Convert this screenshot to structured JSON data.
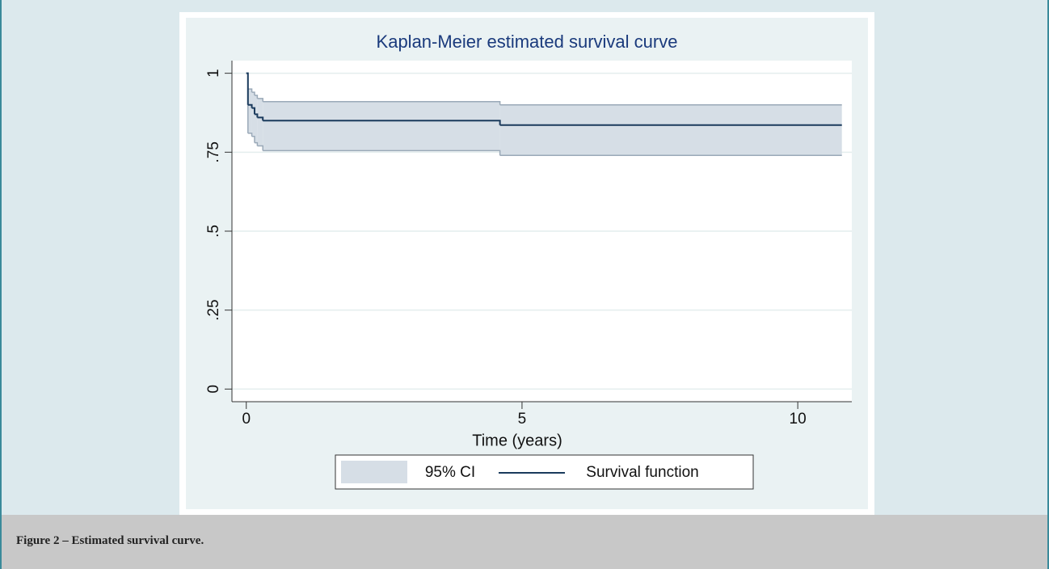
{
  "chart_data": {
    "type": "km",
    "title": "Kaplan-Meier estimated survival curve",
    "x_label": "Time (years)",
    "x": [
      0,
      0.03,
      0.1,
      0.15,
      0.2,
      0.3,
      4.6,
      10.8
    ],
    "series": [
      {
        "name": "Survival function",
        "color": "#1a3a5c",
        "values": [
          1,
          0.9,
          0.89,
          0.87,
          0.86,
          0.85,
          0.836,
          0.836
        ]
      }
    ],
    "ci": {
      "name": "95% CI",
      "color": "#d6dee6",
      "edge_color": "#9aa9b8",
      "lower": [
        1,
        0.81,
        0.8,
        0.78,
        0.77,
        0.755,
        0.74,
        0.74
      ],
      "upper": [
        1,
        0.95,
        0.94,
        0.93,
        0.92,
        0.91,
        0.9,
        0.9
      ]
    },
    "xlim": [
      -0.26,
      10.98
    ],
    "xticks": [
      0,
      5,
      10
    ],
    "ylim": [
      -0.04,
      1.04
    ],
    "yticks": [
      0,
      {
        "value": 0.25,
        "label": ".25"
      },
      {
        "value": 0.5,
        "label": ".5"
      },
      {
        "value": 0.75,
        "label": ".75"
      },
      1
    ],
    "grid": true
  },
  "caption": "Figure 2 – Estimated survival curve."
}
